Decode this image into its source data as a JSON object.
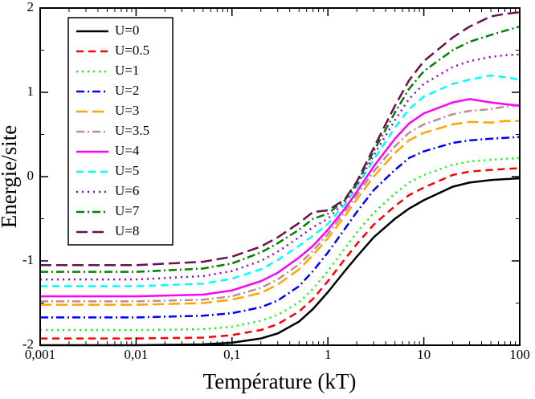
{
  "chart_data": {
    "type": "line",
    "xlabel": "Température (kT)",
    "ylabel": "Energie/site",
    "xscale": "log",
    "xlim": [
      0.001,
      100
    ],
    "xticks": [
      {
        "value": 0.001,
        "label": "0,001"
      },
      {
        "value": 0.01,
        "label": "0,01"
      },
      {
        "value": 0.1,
        "label": "0,1"
      },
      1,
      10,
      100
    ],
    "ylim": [
      -2,
      2
    ],
    "yticks": [
      -2,
      -1,
      0,
      1,
      2
    ],
    "legend": "upper left",
    "x": [
      0.001,
      0.01,
      0.05,
      0.1,
      0.2,
      0.3,
      0.5,
      0.7,
      1,
      1.5,
      2,
      3,
      5,
      7,
      10,
      20,
      30,
      50,
      70,
      100
    ],
    "series": [
      {
        "name": "U=0",
        "color": "#000000",
        "style": "solid",
        "values": [
          -2,
          -2,
          -1.99,
          -1.97,
          -1.92,
          -1.86,
          -1.72,
          -1.57,
          -1.37,
          -1.12,
          -0.95,
          -0.72,
          -0.5,
          -0.38,
          -0.28,
          -0.12,
          -0.07,
          -0.04,
          -0.03,
          -0.02
        ]
      },
      {
        "name": "U=0.5",
        "color": "#ff0000",
        "style": "dashed",
        "values": [
          -1.92,
          -1.92,
          -1.91,
          -1.88,
          -1.82,
          -1.75,
          -1.6,
          -1.45,
          -1.24,
          -0.98,
          -0.8,
          -0.57,
          -0.35,
          -0.22,
          -0.13,
          0.02,
          0.06,
          0.08,
          0.09,
          0.1
        ]
      },
      {
        "name": "U=1",
        "color": "#00ff00",
        "style": "dotted",
        "values": [
          -1.82,
          -1.82,
          -1.81,
          -1.78,
          -1.71,
          -1.64,
          -1.49,
          -1.33,
          -1.12,
          -0.85,
          -0.66,
          -0.43,
          -0.2,
          -0.07,
          0.02,
          0.14,
          0.18,
          0.2,
          0.21,
          0.22
        ]
      },
      {
        "name": "U=2",
        "color": "#0000ff",
        "style": "dashdot",
        "values": [
          -1.67,
          -1.67,
          -1.65,
          -1.62,
          -1.55,
          -1.47,
          -1.3,
          -1.12,
          -0.9,
          -0.62,
          -0.42,
          -0.16,
          0.08,
          0.22,
          0.3,
          0.4,
          0.43,
          0.45,
          0.46,
          0.47
        ]
      },
      {
        "name": "U=3",
        "color": "#ffa500",
        "style": "longdash",
        "values": [
          -1.52,
          -1.52,
          -1.5,
          -1.46,
          -1.38,
          -1.28,
          -1.1,
          -0.93,
          -0.73,
          -0.47,
          -0.27,
          0.0,
          0.28,
          0.43,
          0.52,
          0.62,
          0.65,
          0.64,
          0.66,
          0.66
        ]
      },
      {
        "name": "U=3.5",
        "color": "#bc8f8f",
        "style": "dashdot",
        "values": [
          -1.48,
          -1.48,
          -1.46,
          -1.42,
          -1.32,
          -1.22,
          -1.04,
          -0.88,
          -0.68,
          -0.42,
          -0.22,
          0.06,
          0.36,
          0.52,
          0.62,
          0.74,
          0.78,
          0.8,
          0.83,
          0.85
        ]
      },
      {
        "name": "U=4",
        "color": "#ff00ff",
        "style": "solid",
        "values": [
          -1.42,
          -1.42,
          -1.4,
          -1.35,
          -1.24,
          -1.14,
          -0.96,
          -0.82,
          -0.63,
          -0.38,
          -0.18,
          0.12,
          0.45,
          0.63,
          0.75,
          0.88,
          0.92,
          0.88,
          0.86,
          0.84
        ]
      },
      {
        "name": "U=5",
        "color": "#00ffff",
        "style": "dashed",
        "values": [
          -1.3,
          -1.3,
          -1.27,
          -1.21,
          -1.1,
          -0.99,
          -0.82,
          -0.7,
          -0.56,
          -0.33,
          -0.12,
          0.2,
          0.58,
          0.8,
          0.95,
          1.1,
          1.15,
          1.2,
          1.18,
          1.15
        ]
      },
      {
        "name": "U=6",
        "color": "#9400d3",
        "style": "dotted",
        "values": [
          -1.22,
          -1.22,
          -1.18,
          -1.12,
          -1.0,
          -0.89,
          -0.72,
          -0.6,
          -0.5,
          -0.3,
          -0.1,
          0.25,
          0.67,
          0.92,
          1.1,
          1.3,
          1.37,
          1.42,
          1.44,
          1.45
        ]
      },
      {
        "name": "U=7",
        "color": "#008000",
        "style": "dashdot",
        "values": [
          -1.13,
          -1.13,
          -1.09,
          -1.03,
          -0.9,
          -0.79,
          -0.63,
          -0.5,
          -0.44,
          -0.28,
          -0.08,
          0.3,
          0.76,
          1.04,
          1.25,
          1.5,
          1.6,
          1.68,
          1.73,
          1.78
        ]
      },
      {
        "name": "U=8",
        "color": "#6b0f4f",
        "style": "longdash",
        "values": [
          -1.05,
          -1.05,
          -1.01,
          -0.95,
          -0.83,
          -0.72,
          -0.55,
          -0.42,
          -0.4,
          -0.27,
          -0.06,
          0.34,
          0.84,
          1.14,
          1.37,
          1.65,
          1.78,
          1.9,
          1.93,
          1.95
        ]
      }
    ]
  }
}
